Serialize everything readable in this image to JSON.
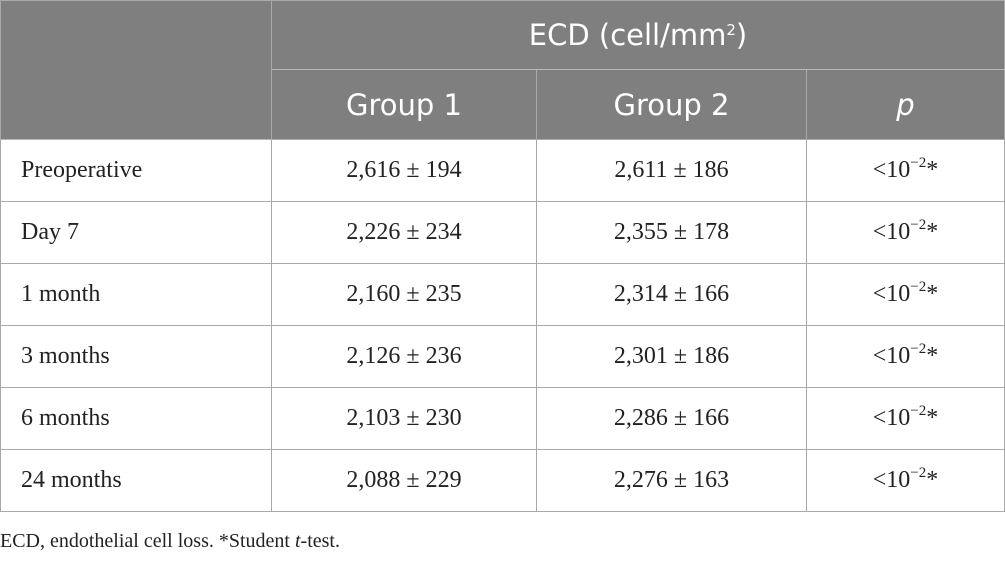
{
  "header": {
    "group_title_main": "ECD (cell/mm",
    "group_title_sup": "2",
    "group_title_end": ")",
    "columns": [
      "Group 1",
      "Group 2",
      "p"
    ]
  },
  "rows": [
    {
      "label": "Preoperative",
      "g1": "2,616 ± 194",
      "g2": "2,611 ± 186",
      "p_base": "<10",
      "p_exp": "−2",
      "p_mark": "*"
    },
    {
      "label": "Day 7",
      "g1": "2,226 ± 234",
      "g2": "2,355 ± 178",
      "p_base": "<10",
      "p_exp": "−2",
      "p_mark": "*"
    },
    {
      "label": "1 month",
      "g1": "2,160 ± 235",
      "g2": "2,314 ± 166",
      "p_base": "<10",
      "p_exp": "−2",
      "p_mark": "*"
    },
    {
      "label": "3 months",
      "g1": "2,126 ± 236",
      "g2": "2,301 ± 186",
      "p_base": "<10",
      "p_exp": "−2",
      "p_mark": "*"
    },
    {
      "label": "6 months",
      "g1": "2,103 ± 230",
      "g2": "2,286 ± 166",
      "p_base": "<10",
      "p_exp": "−2",
      "p_mark": "*"
    },
    {
      "label": "24 months",
      "g1": "2,088 ± 229",
      "g2": "2,276 ± 163",
      "p_base": "<10",
      "p_exp": "−2",
      "p_mark": "*"
    }
  ],
  "footnote": {
    "before": "ECD, endothelial cell loss. *Student ",
    "italic": "t",
    "after": "-test."
  },
  "colors": {
    "header_bg": "#7f7f7f",
    "header_text": "#ffffff",
    "border": "#a9a9a9"
  }
}
